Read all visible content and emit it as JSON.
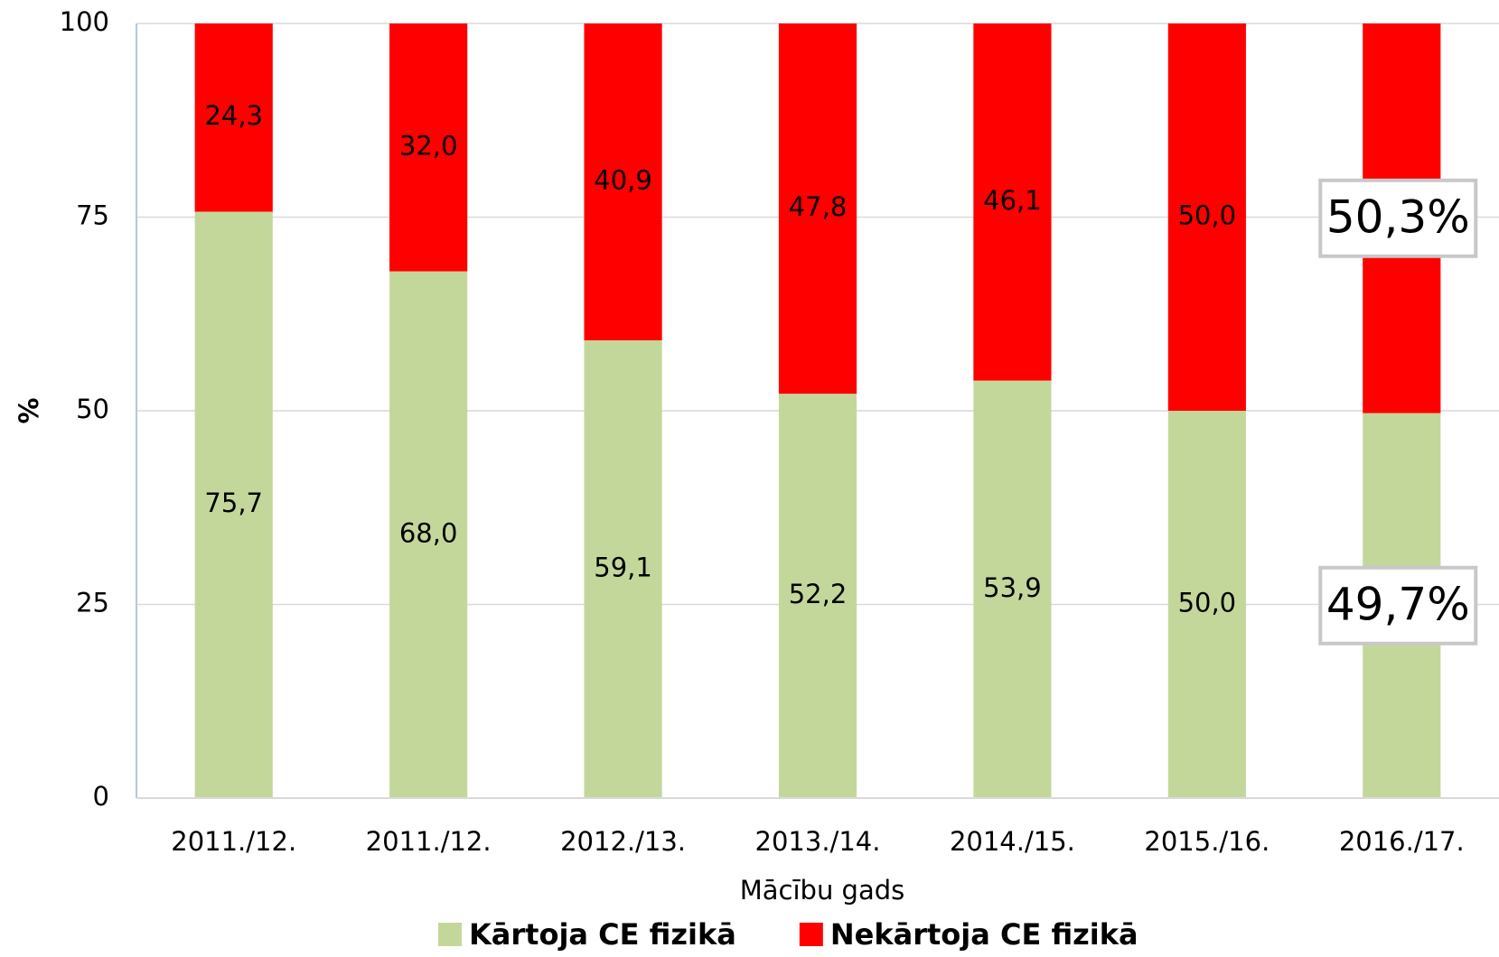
{
  "chart_data": {
    "type": "stacked_bar",
    "categories": [
      "2011./12.",
      "2011./12.",
      "2012./13.",
      "2013./14.",
      "2014./15.",
      "2015./16.",
      "2016./17."
    ],
    "series": [
      {
        "name": "Kārtoja CE fizikā",
        "color": "#c4d79b",
        "values": [
          75.7,
          68.0,
          59.1,
          52.2,
          53.9,
          50.0,
          49.7
        ],
        "value_labels": [
          "75,7",
          "68,0",
          "59,1",
          "52,2",
          "53,9",
          "50,0",
          "49,7%"
        ]
      },
      {
        "name": "Nekārtoja CE fizikā",
        "color": "#ff0000",
        "values": [
          24.3,
          32.0,
          40.9,
          47.8,
          46.1,
          50.0,
          50.3
        ],
        "value_labels": [
          "24,3",
          "32,0",
          "40,9",
          "47,8",
          "46,1",
          "50,0",
          "50,3%"
        ]
      }
    ],
    "ylim": [
      0,
      100
    ],
    "yticks": [
      0,
      25,
      50,
      75,
      100
    ],
    "grid": true,
    "y_label": "%",
    "x_label": "Mācību gads",
    "legend": "bottom"
  }
}
